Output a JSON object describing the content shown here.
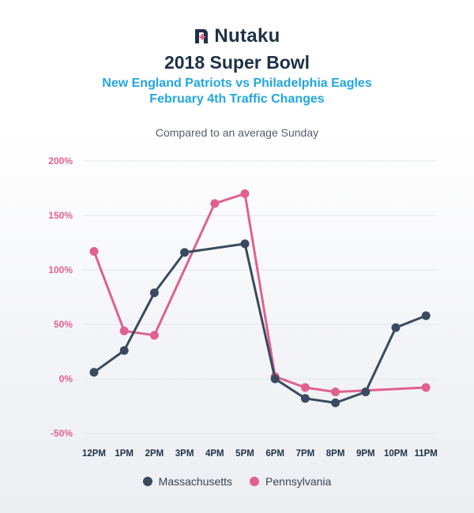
{
  "brand": {
    "name": "Nutaku"
  },
  "colors": {
    "massachusetts": "#3a4a5f",
    "pennsylvania": "#e0618e",
    "ytick": "#e0618e",
    "xtick": "#1f3147",
    "grid": "#e2e5ea"
  },
  "chart_data": {
    "type": "line",
    "title": "2018 Super Bowl",
    "subtitle_lines": [
      "New England Patriots vs Philadelphia Eagles",
      "February 4th Traffic Changes"
    ],
    "note": "Compared to an average Sunday",
    "categories": [
      "12PM",
      "1PM",
      "2PM",
      "3PM",
      "4PM",
      "5PM",
      "6PM",
      "7PM",
      "8PM",
      "9PM",
      "10PM",
      "11PM"
    ],
    "yticks": [
      "200%",
      "150%",
      "100%",
      "50%",
      "0%",
      "-50%"
    ],
    "ylim": [
      -50,
      200
    ],
    "grid": true,
    "legend_position": "bottom",
    "series": [
      {
        "name": "Massachusetts",
        "values": [
          6,
          26,
          79,
          116,
          null,
          124,
          0,
          -18,
          -22,
          -12,
          47,
          58
        ]
      },
      {
        "name": "Pennsylvania",
        "values": [
          117,
          44,
          40,
          null,
          161,
          170,
          2,
          -8,
          -12,
          null,
          null,
          -8
        ]
      }
    ]
  }
}
